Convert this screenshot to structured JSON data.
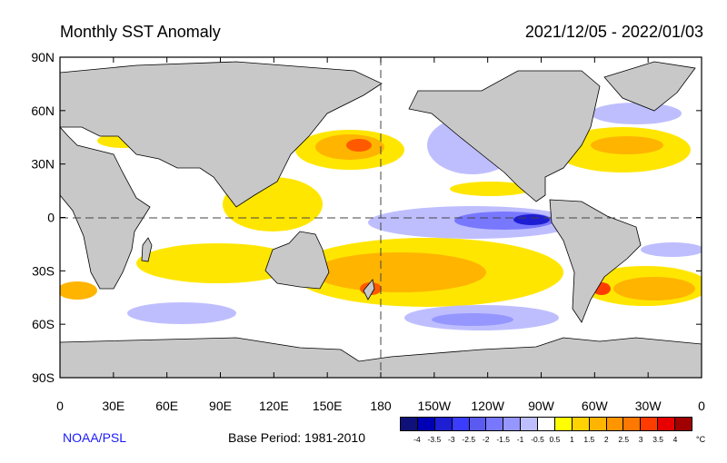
{
  "header": {
    "title": "Monthly SST Anomaly",
    "date_range": "2021/12/05 - 2022/01/03"
  },
  "map": {
    "projection": "equirectangular, centered on 180",
    "lat_labels": [
      "90N",
      "60N",
      "30N",
      "0",
      "30S",
      "60S",
      "90S"
    ],
    "lon_labels": [
      "0",
      "30E",
      "60E",
      "90E",
      "120E",
      "150E",
      "180",
      "150W",
      "120W",
      "90W",
      "60W",
      "30W",
      "0"
    ],
    "land_color": "#c8c8c8",
    "ocean_color": "#ffffff"
  },
  "footer": {
    "credit": "NOAA/PSL",
    "base_period": "Base Period: 1981-2010"
  },
  "colorbar": {
    "units": "°C",
    "tick_labels": [
      "-4",
      "-3.5",
      "-3",
      "-2.5",
      "-2",
      "-1.5",
      "-1",
      "-0.5",
      "0.5",
      "1",
      "1.5",
      "2",
      "2.5",
      "3",
      "3.5",
      "4"
    ],
    "colors": [
      "#10107a",
      "#0000b4",
      "#1e1ed2",
      "#3c3cff",
      "#5a5af0",
      "#7878ff",
      "#9696ff",
      "#bebeff",
      "#ffffff",
      "#ffff00",
      "#ffd200",
      "#ffb400",
      "#ff9600",
      "#ff7800",
      "#ff3c00",
      "#e60000",
      "#a00000"
    ]
  }
}
